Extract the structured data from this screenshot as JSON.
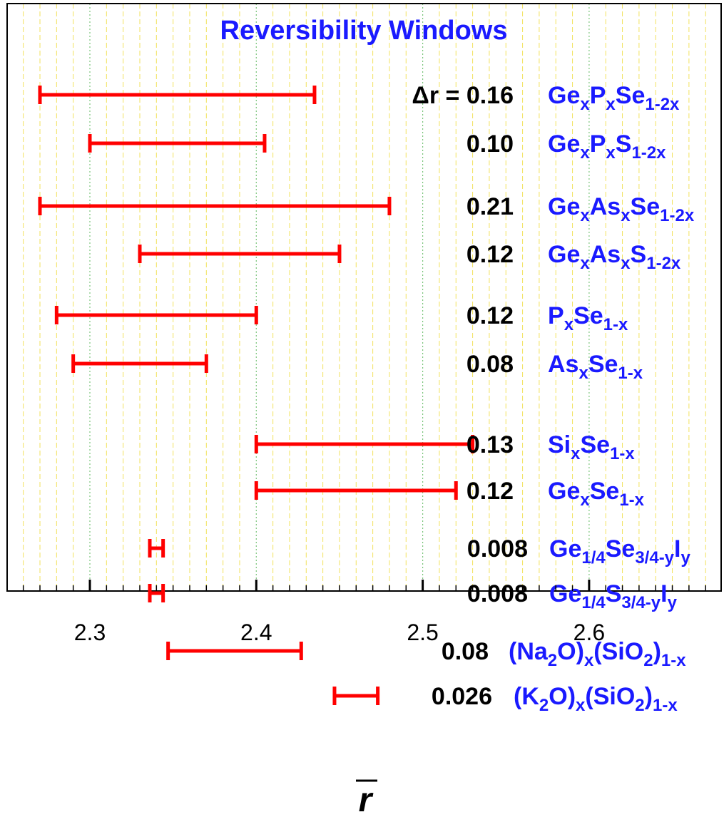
{
  "chart_data": {
    "type": "range",
    "title": "Reversibility Windows",
    "xlabel": "r",
    "xlim": [
      2.26,
      2.68
    ],
    "x_ticks": [
      2.3,
      2.4,
      2.5,
      2.6
    ],
    "x_tick_labels": [
      "2.3",
      "2.4",
      "2.5",
      "2.6"
    ],
    "grid": "vertical dashed yellow lines, green dotted lines at major ticks",
    "delta_prefix": "Δr = ",
    "series": [
      {
        "label_parts": [
          {
            "t": "Ge"
          },
          {
            "t": "x",
            "s": "sub"
          },
          {
            "t": "P"
          },
          {
            "t": "x",
            "s": "sub"
          },
          {
            "t": "Se"
          },
          {
            "t": "1-2x",
            "s": "sub"
          }
        ],
        "delta_r": "0.16",
        "x_start": 2.27,
        "x_end": 2.435
      },
      {
        "label_parts": [
          {
            "t": "Ge"
          },
          {
            "t": "x",
            "s": "sub"
          },
          {
            "t": "P"
          },
          {
            "t": "x",
            "s": "sub"
          },
          {
            "t": "S"
          },
          {
            "t": "1-2x",
            "s": "sub"
          }
        ],
        "delta_r": "0.10",
        "x_start": 2.3,
        "x_end": 2.405
      },
      {
        "label_parts": [
          {
            "t": "Ge"
          },
          {
            "t": "x",
            "s": "sub"
          },
          {
            "t": "As"
          },
          {
            "t": "x",
            "s": "sub"
          },
          {
            "t": "Se"
          },
          {
            "t": "1-2x",
            "s": "sub"
          }
        ],
        "delta_r": "0.21",
        "x_start": 2.27,
        "x_end": 2.48
      },
      {
        "label_parts": [
          {
            "t": "Ge"
          },
          {
            "t": "x",
            "s": "sub"
          },
          {
            "t": "As"
          },
          {
            "t": "x",
            "s": "sub"
          },
          {
            "t": "S"
          },
          {
            "t": "1-2x",
            "s": "sub"
          }
        ],
        "delta_r": "0.12",
        "x_start": 2.33,
        "x_end": 2.45
      },
      {
        "label_parts": [
          {
            "t": "P"
          },
          {
            "t": "x",
            "s": "sub"
          },
          {
            "t": "Se"
          },
          {
            "t": "1-x",
            "s": "sub"
          }
        ],
        "delta_r": "0.12",
        "x_start": 2.28,
        "x_end": 2.4
      },
      {
        "label_parts": [
          {
            "t": "As"
          },
          {
            "t": "x",
            "s": "sub"
          },
          {
            "t": "Se"
          },
          {
            "t": "1-x",
            "s": "sub"
          }
        ],
        "delta_r": "0.08",
        "x_start": 2.29,
        "x_end": 2.37
      },
      {
        "label_parts": [
          {
            "t": "Si"
          },
          {
            "t": "x",
            "s": "sub"
          },
          {
            "t": "Se"
          },
          {
            "t": "1-x",
            "s": "sub"
          }
        ],
        "delta_r": "0.13",
        "x_start": 2.4,
        "x_end": 2.53
      },
      {
        "label_parts": [
          {
            "t": "Ge"
          },
          {
            "t": "x",
            "s": "sub"
          },
          {
            "t": "Se"
          },
          {
            "t": "1-x",
            "s": "sub"
          }
        ],
        "delta_r": "0.12",
        "x_start": 2.4,
        "x_end": 2.52
      },
      {
        "label_parts": [
          {
            "t": "Ge"
          },
          {
            "t": "1/4",
            "s": "sub"
          },
          {
            "t": "Se"
          },
          {
            "t": "3/4-y",
            "s": "sub"
          },
          {
            "t": "I"
          },
          {
            "t": "y",
            "s": "sub"
          }
        ],
        "delta_r": "0.008",
        "x_start": 2.336,
        "x_end": 2.344
      },
      {
        "label_parts": [
          {
            "t": "Ge"
          },
          {
            "t": "1/4",
            "s": "sub"
          },
          {
            "t": "S"
          },
          {
            "t": "3/4-y",
            "s": "sub"
          },
          {
            "t": "I"
          },
          {
            "t": "y",
            "s": "sub"
          }
        ],
        "delta_r": "0.008",
        "x_start": 2.336,
        "x_end": 2.344
      },
      {
        "label_parts": [
          {
            "t": "(Na"
          },
          {
            "t": "2",
            "s": "sub"
          },
          {
            "t": "O)"
          },
          {
            "t": "x",
            "s": "sub"
          },
          {
            "t": "(SiO"
          },
          {
            "t": "2",
            "s": "sub"
          },
          {
            "t": ")"
          },
          {
            "t": "1-x",
            "s": "sub"
          }
        ],
        "delta_r": "0.08",
        "x_start": 2.347,
        "x_end": 2.427
      },
      {
        "label_parts": [
          {
            "t": "(K"
          },
          {
            "t": "2",
            "s": "sub"
          },
          {
            "t": "O)"
          },
          {
            "t": "x",
            "s": "sub"
          },
          {
            "t": "(SiO"
          },
          {
            "t": "2",
            "s": "sub"
          },
          {
            "t": ")"
          },
          {
            "t": "1-x",
            "s": "sub"
          }
        ],
        "delta_r": "0.026",
        "x_start": 2.447,
        "x_end": 2.473
      }
    ],
    "colors": {
      "bar": "#ff0000",
      "label": "#1a1aff",
      "delta_text": "#000000",
      "grid_minor": "#f2e25c",
      "grid_major": "#7ac47a"
    }
  }
}
